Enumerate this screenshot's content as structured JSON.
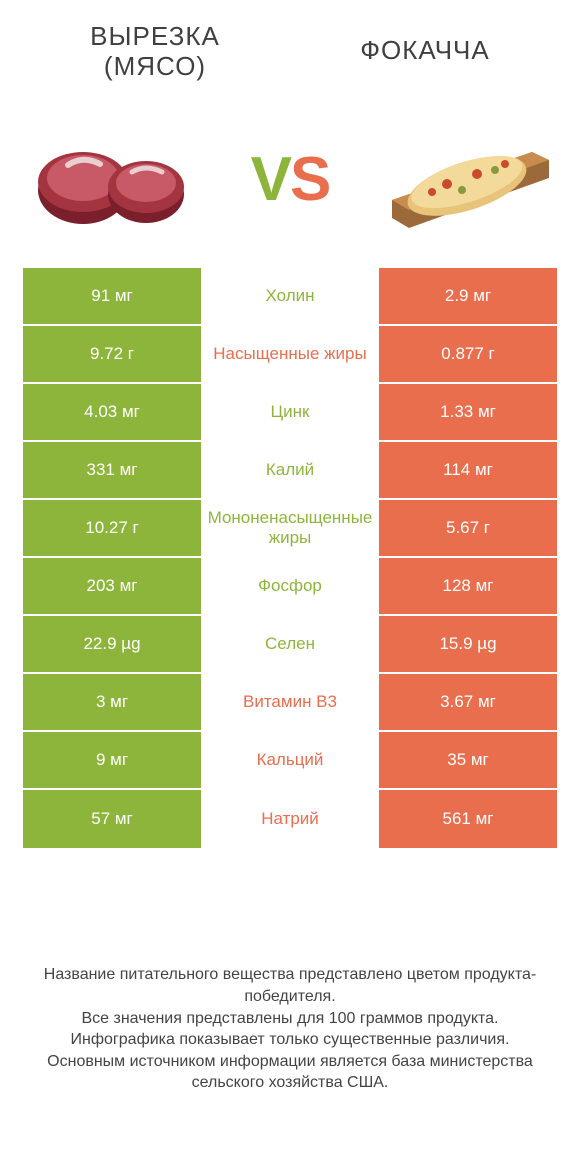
{
  "colors": {
    "green": "#8eb53b",
    "orange": "#e86e4e",
    "text_dark": "#404040",
    "white": "#ffffff"
  },
  "header": {
    "left_title_line1": "ВЫРЕЗКА",
    "left_title_line2": "(МЯСО)",
    "right_title": "ФОКАЧЧА"
  },
  "vs": {
    "v": "V",
    "s": "S"
  },
  "rows": [
    {
      "left": "91 мг",
      "name": "Холин",
      "right": "2.9 мг",
      "winner": "left"
    },
    {
      "left": "9.72 г",
      "name": "Насыщенные жиры",
      "right": "0.877 г",
      "winner": "right"
    },
    {
      "left": "4.03 мг",
      "name": "Цинк",
      "right": "1.33 мг",
      "winner": "left"
    },
    {
      "left": "331 мг",
      "name": "Калий",
      "right": "114 мг",
      "winner": "left"
    },
    {
      "left": "10.27 г",
      "name": "Мононенасыщенные жиры",
      "right": "5.67 г",
      "winner": "left"
    },
    {
      "left": "203 мг",
      "name": "Фосфор",
      "right": "128 мг",
      "winner": "left"
    },
    {
      "left": "22.9 µg",
      "name": "Селен",
      "right": "15.9 µg",
      "winner": "left"
    },
    {
      "left": "3 мг",
      "name": "Витамин B3",
      "right": "3.67 мг",
      "winner": "right"
    },
    {
      "left": "9 мг",
      "name": "Кальций",
      "right": "35 мг",
      "winner": "right"
    },
    {
      "left": "57 мг",
      "name": "Натрий",
      "right": "561 мг",
      "winner": "right"
    }
  ],
  "footer": {
    "line1": "Название питательного вещества представлено цветом продукта-победителя.",
    "line2": "Все значения представлены для 100 граммов продукта.",
    "line3": "Инфографика показывает только существенные различия.",
    "line4": "Основным источником информации является база министерства сельского хозяйства США."
  }
}
